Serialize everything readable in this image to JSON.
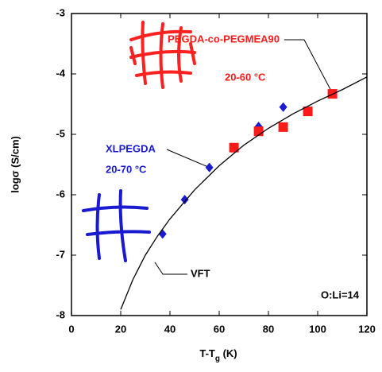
{
  "chart_data": {
    "type": "scatter",
    "x_label": [
      "T-T",
      "g",
      " (K)"
    ],
    "y_label": "logσ (S/cm)",
    "xlim": [
      0,
      120
    ],
    "xticks": [
      0,
      20,
      40,
      60,
      80,
      100,
      120
    ],
    "ylim": [
      -8,
      -3
    ],
    "yticks": [
      -8,
      -7,
      -6,
      -5,
      -4,
      -3
    ],
    "series": [
      {
        "name": "XLPEGDA",
        "color": "#1a1ad0",
        "marker": "diamond",
        "x": [
          37,
          46,
          56,
          66,
          76,
          86
        ],
        "values": [
          -6.65,
          -6.08,
          -5.55,
          -5.22,
          -4.87,
          -4.55
        ]
      },
      {
        "name": "PEGDA-co-PEGMEA90",
        "color": "#ff1a1a",
        "marker": "square",
        "x": [
          66,
          76,
          86,
          96,
          106
        ],
        "values": [
          -5.22,
          -4.95,
          -4.88,
          -4.62,
          -4.33
        ]
      },
      {
        "name": "VFT",
        "color": "#000000",
        "marker": "line",
        "x": [
          20,
          25,
          30,
          35,
          40,
          50,
          60,
          70,
          80,
          90,
          100,
          110,
          120
        ],
        "values": [
          -7.9,
          -7.4,
          -7.0,
          -6.68,
          -6.4,
          -5.92,
          -5.52,
          -5.18,
          -4.9,
          -4.66,
          -4.45,
          -4.26,
          -4.05
        ]
      }
    ],
    "annotations": [
      "20-60 °C",
      "20-70 °C",
      "O:Li=14"
    ]
  }
}
